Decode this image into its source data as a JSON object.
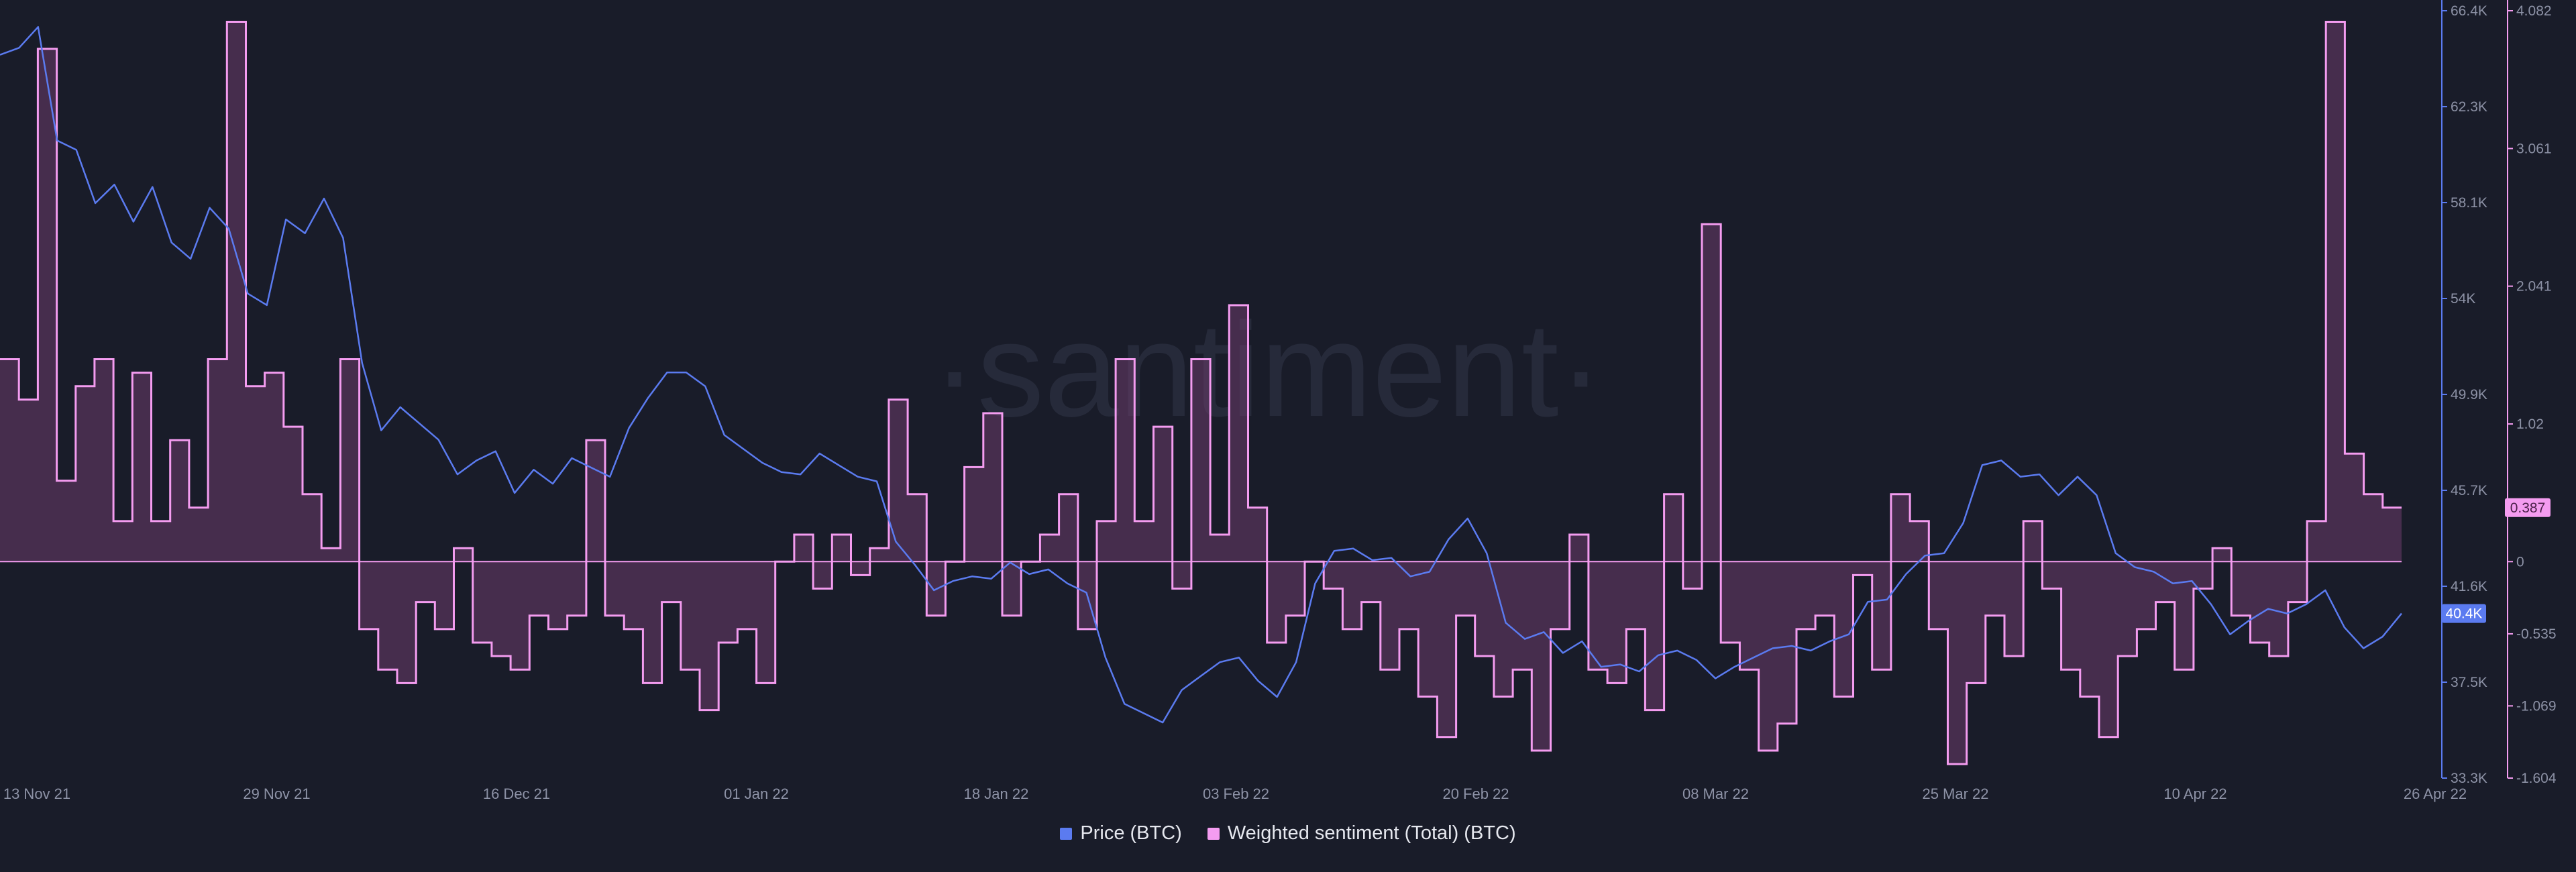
{
  "colors": {
    "background": "#191c29",
    "price": "#5b7bf0",
    "sentiment": "#f49cf0",
    "sentiment_fill": "#6c3d6b",
    "axis_text": "#8d92a6",
    "grid": "#232738",
    "watermark": "#262a3a"
  },
  "watermark": "·santiment·",
  "chart_data": {
    "type": "line",
    "x_ticks": [
      "13 Nov 21",
      "29 Nov 21",
      "16 Dec 21",
      "01 Jan 22",
      "18 Jan 22",
      "03 Feb 22",
      "20 Feb 22",
      "08 Mar 22",
      "25 Mar 22",
      "10 Apr 22",
      "26 Apr 22"
    ],
    "price_axis": {
      "ticks": [
        "66.4K",
        "62.3K",
        "58.1K",
        "54K",
        "49.9K",
        "45.7K",
        "41.6K",
        "37.5K",
        "33.3K"
      ],
      "range": [
        33300,
        66400
      ]
    },
    "sentiment_axis": {
      "ticks": [
        "4.082",
        "3.061",
        "2.041",
        "1.02",
        "0",
        "-0.535",
        "-1.069",
        "-1.604"
      ],
      "range": [
        -1.604,
        4.082
      ]
    },
    "current_price_label": "40.4K",
    "current_sentiment_label": "0.387",
    "series": [
      {
        "name": "Price (BTC)",
        "axis": "price",
        "values": [
          64500,
          64800,
          65700,
          60800,
          60400,
          58100,
          58900,
          57300,
          58800,
          56400,
          55700,
          57900,
          57000,
          54200,
          53700,
          57400,
          56800,
          58300,
          56600,
          51200,
          48300,
          49300,
          48600,
          47900,
          46400,
          47000,
          47400,
          45600,
          46600,
          46000,
          47100,
          46700,
          46300,
          48400,
          49700,
          50800,
          50800,
          50200,
          48100,
          47500,
          46900,
          46500,
          46400,
          47300,
          46800,
          46300,
          46100,
          43500,
          42500,
          41400,
          41800,
          42000,
          41900,
          42600,
          42100,
          42300,
          41700,
          41300,
          38500,
          36500,
          36100,
          35700,
          37100,
          37700,
          38300,
          38500,
          37500,
          36800,
          38300,
          41700,
          43100,
          43200,
          42700,
          42800,
          42000,
          42200,
          43600,
          44500,
          43000,
          40000,
          39300,
          39600,
          38700,
          39200,
          38100,
          38200,
          37900,
          38600,
          38800,
          38400,
          37600,
          38100,
          38500,
          38900,
          39000,
          38800,
          39200,
          39500,
          40900,
          41000,
          42100,
          42900,
          43000,
          44300,
          46800,
          47000,
          46300,
          46400,
          45500,
          46300,
          45500,
          43000,
          42400,
          42200,
          41700,
          41800,
          40800,
          39500,
          40100,
          40600,
          40400,
          40800,
          41400,
          39800,
          38900,
          39400,
          40400
        ]
      },
      {
        "name": "Weighted sentiment (Total) (BTC)",
        "axis": "sentiment",
        "values": [
          1.5,
          1.2,
          3.8,
          0.6,
          1.3,
          1.5,
          0.3,
          1.4,
          0.3,
          0.9,
          0.4,
          1.5,
          4.0,
          1.3,
          1.4,
          1.0,
          0.5,
          0.1,
          1.5,
          -0.5,
          -0.8,
          -0.9,
          -0.3,
          -0.5,
          0.1,
          -0.6,
          -0.7,
          -0.8,
          -0.4,
          -0.5,
          -0.4,
          0.9,
          -0.4,
          -0.5,
          -0.9,
          -0.3,
          -0.8,
          -1.1,
          -0.6,
          -0.5,
          -0.9,
          0.0,
          0.2,
          -0.2,
          0.2,
          -0.1,
          0.1,
          1.2,
          0.5,
          -0.4,
          0.0,
          0.7,
          1.1,
          -0.4,
          0.0,
          0.2,
          0.5,
          -0.5,
          0.3,
          1.5,
          0.3,
          1.0,
          -0.2,
          1.5,
          0.2,
          1.9,
          0.4,
          -0.6,
          -0.4,
          0.0,
          -0.2,
          -0.5,
          -0.3,
          -0.8,
          -0.5,
          -1.0,
          -1.3,
          -0.4,
          -0.7,
          -1.0,
          -0.8,
          -1.4,
          -0.5,
          0.2,
          -0.8,
          -0.9,
          -0.5,
          -1.1,
          0.5,
          -0.2,
          2.5,
          -0.6,
          -0.8,
          -1.4,
          -1.2,
          -0.5,
          -0.4,
          -1.0,
          -0.1,
          -0.8,
          0.5,
          0.3,
          -0.5,
          -1.5,
          -0.9,
          -0.4,
          -0.7,
          0.3,
          -0.2,
          -0.8,
          -1.0,
          -1.3,
          -0.7,
          -0.5,
          -0.3,
          -0.8,
          -0.2,
          0.1,
          -0.4,
          -0.6,
          -0.7,
          -0.3,
          0.3,
          4.0,
          0.8,
          0.5,
          0.4
        ]
      }
    ]
  },
  "legend": {
    "price_label": "Price (BTC)",
    "sentiment_label": "Weighted sentiment (Total) (BTC)"
  }
}
